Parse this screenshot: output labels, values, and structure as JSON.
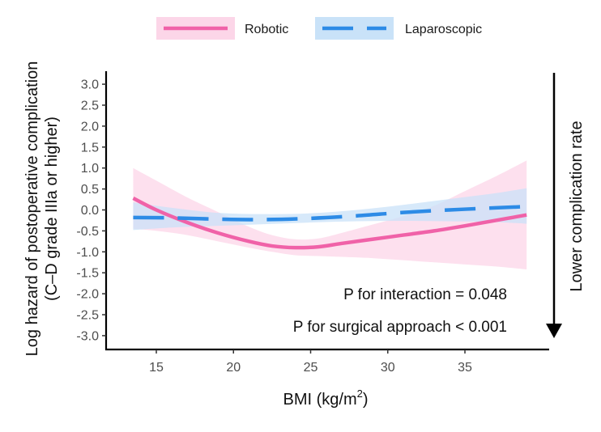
{
  "chart_data": {
    "type": "line",
    "title": "",
    "xlabel": "BMI (kg/m",
    "xlabel_superscript": "2",
    "xlabel_suffix": ")",
    "ylabel_line1": "Log hazard of postoperative complication",
    "ylabel_line2": "(C–D grade IIIa or higher)",
    "xlim": [
      12.4,
      40.3
    ],
    "ylim": [
      -3.25,
      3.25
    ],
    "xticks": [
      15,
      20,
      25,
      30,
      35
    ],
    "xtick_labels": [
      "15",
      "20",
      "25",
      "30",
      "35"
    ],
    "yticks": [
      3.0,
      2.5,
      2.0,
      1.5,
      1.0,
      0.5,
      0.0,
      -0.5,
      -1.0,
      -1.5,
      -2.0,
      -2.5,
      -3.0
    ],
    "ytick_labels": [
      "3.0",
      "2.5",
      "2.0",
      "1.5",
      "1.0",
      "0.5",
      "0.0",
      "-0.5",
      "-1.0",
      "-1.5",
      "-2.0",
      "-2.5",
      "-3.0"
    ],
    "grid": false,
    "legend_position": "top",
    "series": [
      {
        "name": "Robotic",
        "color": "#f062a8",
        "band_color": "#fcd6e8",
        "line_style": "solid",
        "x": [
          13.5,
          15,
          17,
          19,
          21,
          22.5,
          24,
          25.5,
          27,
          29,
          31,
          33,
          35,
          37,
          39
        ],
        "y": [
          0.28,
          0.0,
          -0.3,
          -0.55,
          -0.75,
          -0.86,
          -0.9,
          -0.88,
          -0.8,
          -0.7,
          -0.6,
          -0.5,
          -0.38,
          -0.25,
          -0.12
        ],
        "lower": [
          -0.45,
          -0.5,
          -0.6,
          -0.75,
          -0.9,
          -1.0,
          -1.08,
          -1.1,
          -1.12,
          -1.15,
          -1.2,
          -1.25,
          -1.3,
          -1.35,
          -1.42
        ],
        "upper": [
          1.0,
          0.7,
          0.3,
          -0.05,
          -0.4,
          -0.6,
          -0.7,
          -0.68,
          -0.55,
          -0.35,
          -0.15,
          0.1,
          0.45,
          0.8,
          1.18
        ]
      },
      {
        "name": "Laparoscopic",
        "color": "#2d8be6",
        "band_color": "#c9e2f8",
        "line_style": "dashed",
        "x": [
          13.5,
          16,
          19,
          22,
          25,
          28,
          31,
          34,
          37,
          39
        ],
        "y": [
          -0.18,
          -0.19,
          -0.22,
          -0.23,
          -0.2,
          -0.14,
          -0.06,
          0.0,
          0.05,
          0.08
        ],
        "lower": [
          -0.48,
          -0.42,
          -0.38,
          -0.34,
          -0.3,
          -0.27,
          -0.26,
          -0.27,
          -0.29,
          -0.33
        ],
        "upper": [
          0.18,
          0.05,
          -0.07,
          -0.1,
          -0.08,
          0.0,
          0.12,
          0.26,
          0.4,
          0.52
        ]
      }
    ],
    "annotations": [
      "P for interaction = 0.048",
      "P for surgical approach < 0.001"
    ],
    "side_arrow_label": "Lower complication rate"
  }
}
